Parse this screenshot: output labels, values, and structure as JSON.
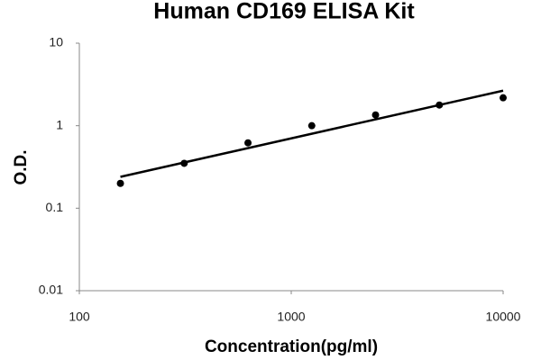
{
  "chart_data": {
    "type": "scatter",
    "title": "Human CD169 ELISA Kit",
    "x_label": "Concentration(pg/ml)",
    "y_label": "O.D.",
    "series": [
      {
        "x": [
          156.25,
          312.5,
          625,
          1250,
          2500,
          5000,
          10000
        ],
        "values": [
          0.2,
          0.35,
          0.62,
          1.0,
          1.35,
          1.78,
          2.18
        ],
        "color": "#000000"
      }
    ],
    "trendline": {
      "x": [
        156.25,
        10000
      ],
      "values": [
        0.24,
        2.66
      ],
      "color": "#000000"
    },
    "xlim": [
      100,
      10000
    ],
    "ylim": [
      0.01,
      10
    ],
    "xticks": [
      100,
      1000,
      10000
    ],
    "yticks": [
      0.01,
      0.1,
      1,
      10
    ],
    "xlog": true,
    "ylog": true,
    "grid": false
  }
}
